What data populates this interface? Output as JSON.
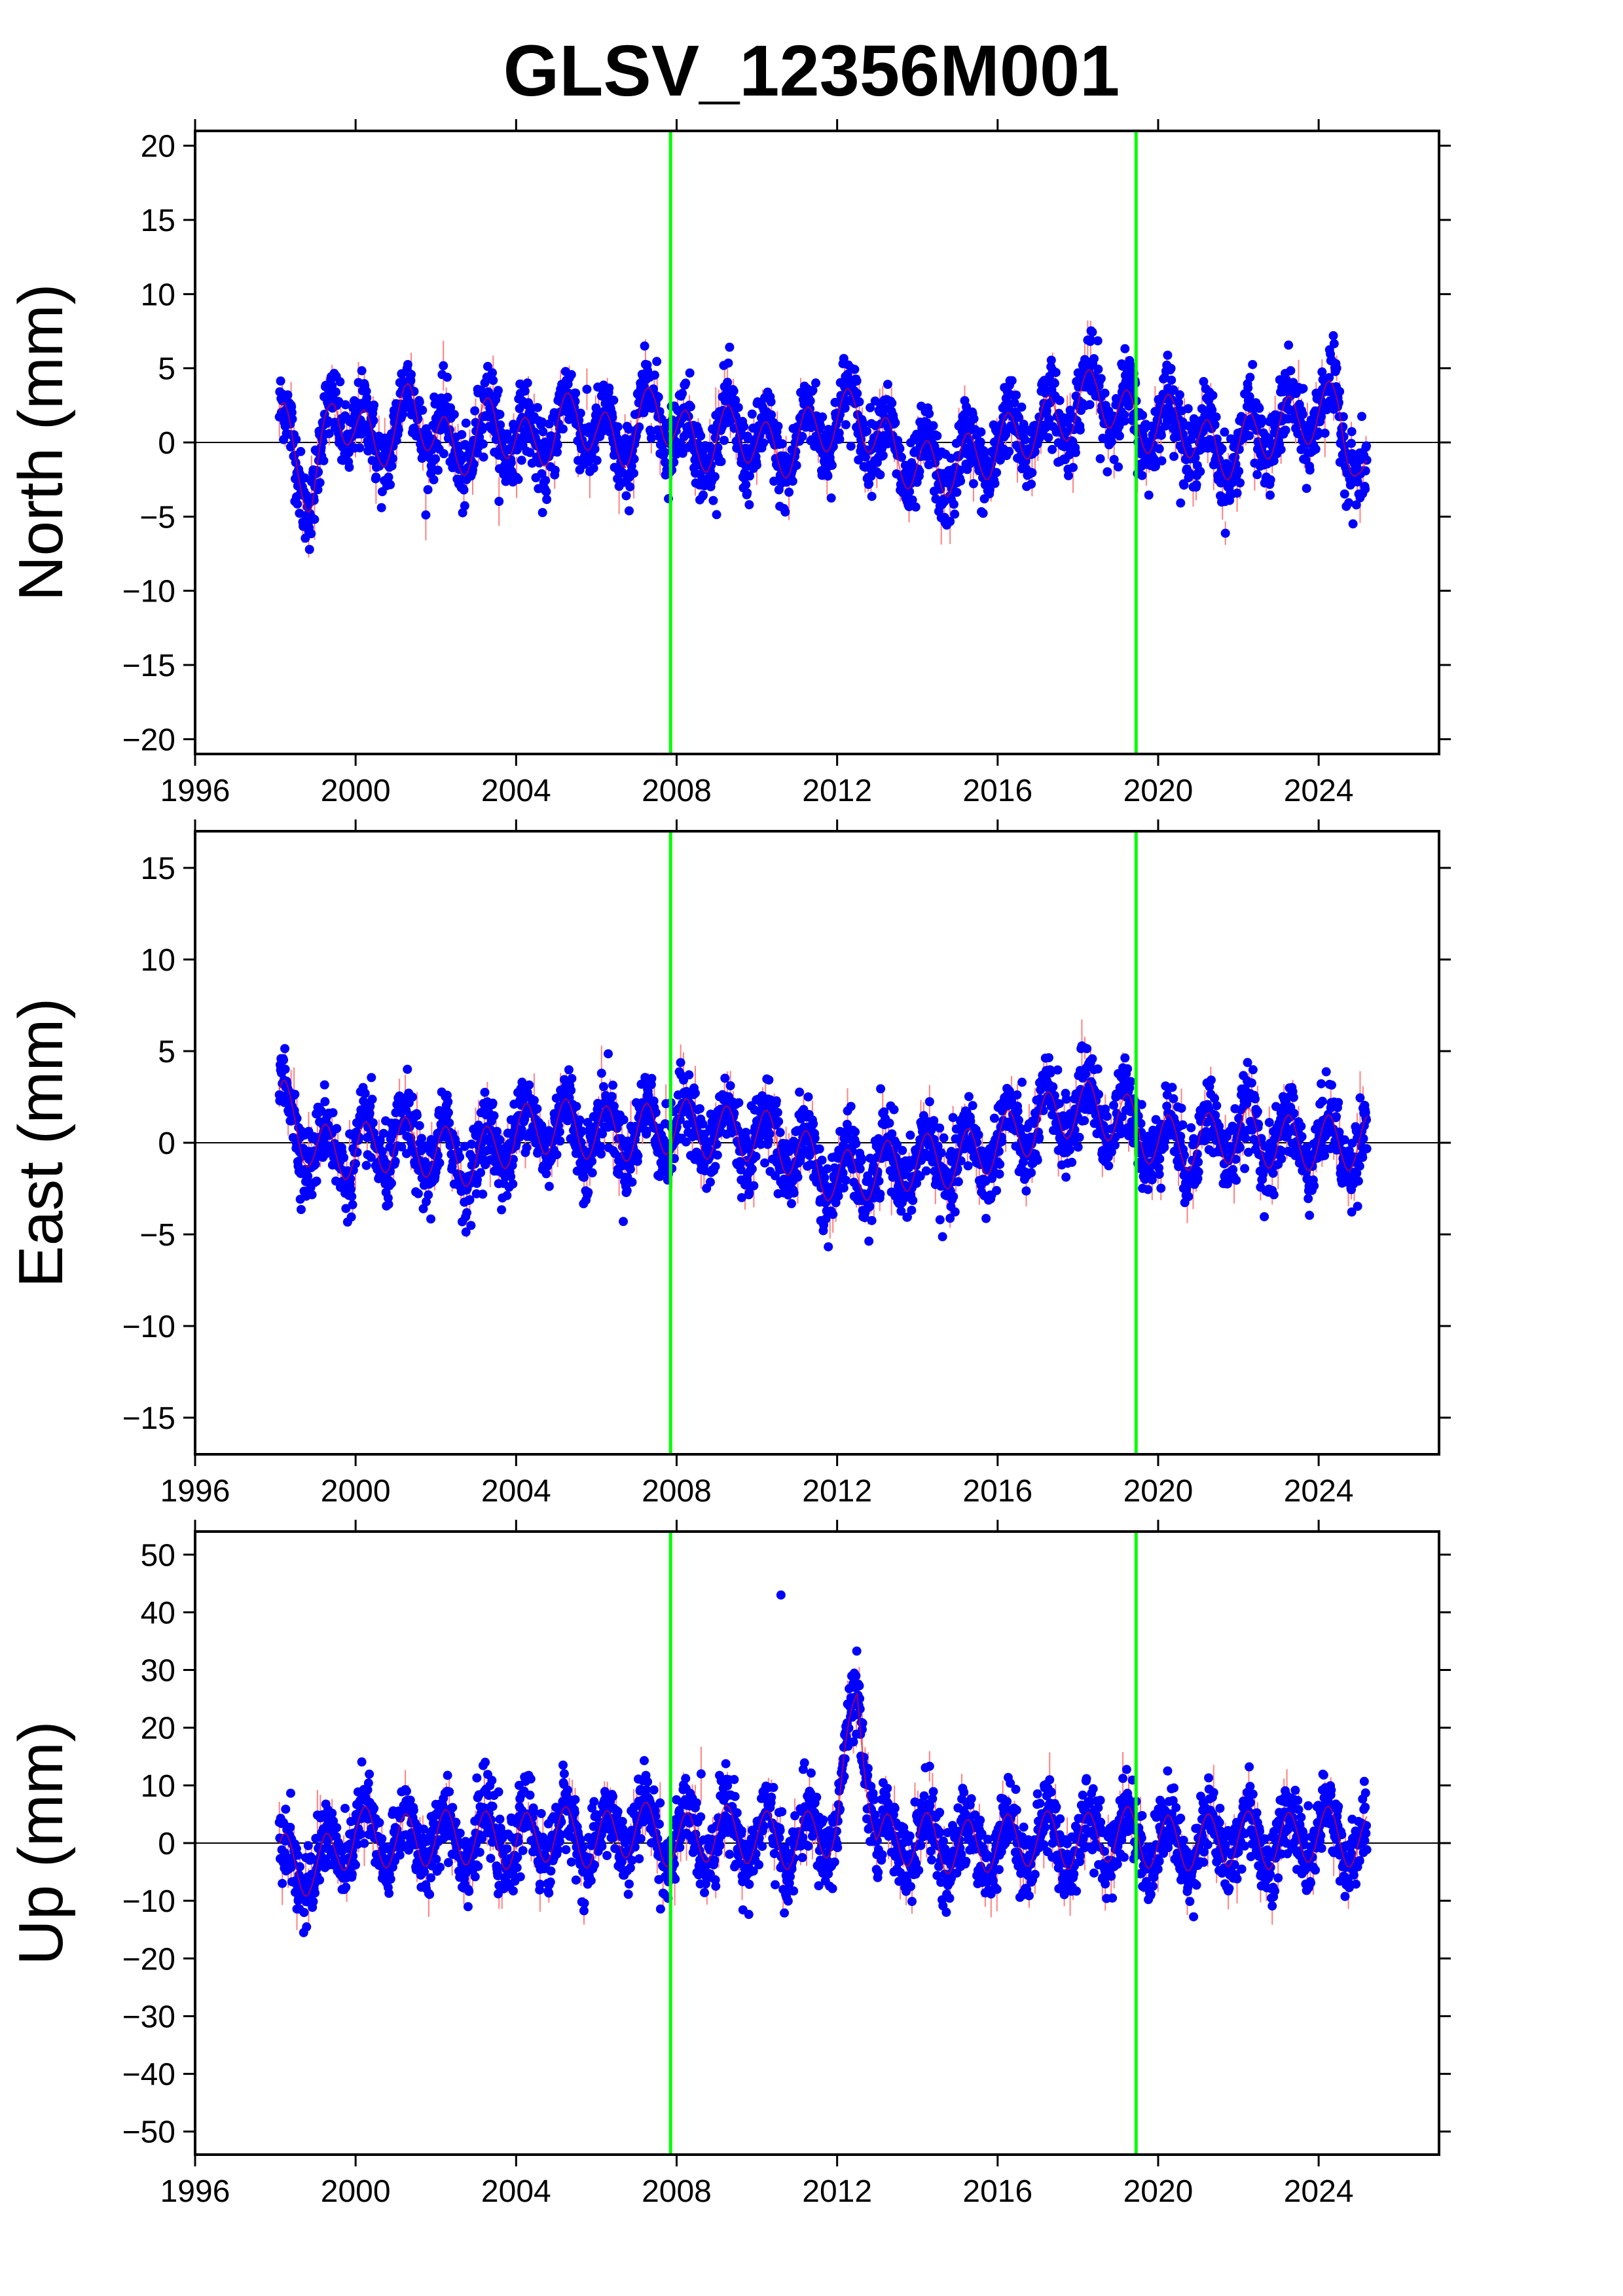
{
  "title": "GLSV_12356M001",
  "colors": {
    "points": "#0000ff",
    "error_bars": "#ff8080",
    "trend": "#ff0000",
    "events": "#00ff00",
    "zero_line": "#000000"
  },
  "chart_data": [
    {
      "type": "scatter",
      "ylabel": "North (mm)",
      "xlim": [
        1996,
        2027
      ],
      "ylim": [
        -21,
        21
      ],
      "xticks": [
        1996,
        2000,
        2004,
        2008,
        2012,
        2016,
        2020,
        2024
      ],
      "yticks": [
        -20,
        -15,
        -10,
        -5,
        0,
        5,
        10,
        15,
        20
      ],
      "event_lines": [
        2007.85,
        2019.45
      ],
      "data_span": [
        1998.1,
        2025.2
      ],
      "series": [
        {
          "x": [
            1998.2,
            1998.9,
            1999.5,
            2000.5,
            2001.4,
            2002.5,
            2003.4,
            2004.4,
            2005.5,
            2006.5,
            2007.5,
            2008.5,
            2009.5,
            2010.5,
            2011.5,
            2012.5,
            2013.5,
            2014.5,
            2015.5,
            2016.5,
            2017.5,
            2018.5,
            2019.5,
            2020.5,
            2021.5,
            2022.5,
            2023.5,
            2024.5,
            2025.1
          ],
          "y": [
            1.0,
            -3.5,
            2.5,
            -0.5,
            2.5,
            -1.0,
            1.5,
            -0.5,
            2.0,
            -0.5,
            2.5,
            -0.5,
            1.0,
            -1.0,
            1.0,
            2.0,
            -1.0,
            -2.0,
            -1.0,
            0.5,
            1.5,
            3.5,
            1.0,
            1.5,
            -1.0,
            0.5,
            1.5,
            2.5,
            -3.0
          ]
        }
      ]
    },
    {
      "type": "scatter",
      "ylabel": "East (mm)",
      "xlim": [
        1996,
        2027
      ],
      "ylim": [
        -17,
        17
      ],
      "xticks": [
        1996,
        2000,
        2004,
        2008,
        2012,
        2016,
        2020,
        2024
      ],
      "yticks": [
        -15,
        -10,
        -5,
        0,
        5,
        10,
        15
      ],
      "event_lines": [
        2007.85,
        2019.45
      ],
      "data_span": [
        1998.1,
        2025.2
      ],
      "series": [
        {
          "x": [
            1998.2,
            1999.0,
            2000.0,
            2001.0,
            2002.0,
            2003.0,
            2004.0,
            2005.0,
            2006.0,
            2007.0,
            2008.0,
            2009.0,
            2010.0,
            2011.0,
            2012.0,
            2013.0,
            2014.0,
            2015.0,
            2016.0,
            2017.0,
            2018.0,
            2019.0,
            2020.0,
            2021.0,
            2022.0,
            2023.0,
            2024.0,
            2025.1
          ],
          "y": [
            2.0,
            -0.5,
            -0.5,
            0.0,
            -0.5,
            -1.0,
            0.5,
            1.0,
            0.5,
            0.5,
            1.0,
            0.5,
            0.5,
            -0.5,
            -2.0,
            -1.5,
            -1.0,
            -1.0,
            0.0,
            1.0,
            2.0,
            1.5,
            0.0,
            0.0,
            0.5,
            0.0,
            0.0,
            0.0
          ]
        }
      ]
    },
    {
      "type": "scatter",
      "ylabel": "Up (mm)",
      "xlim": [
        1996,
        2027
      ],
      "ylim": [
        -54,
        54
      ],
      "xticks": [
        1996,
        2000,
        2004,
        2008,
        2012,
        2016,
        2020,
        2024
      ],
      "yticks": [
        -50,
        -40,
        -30,
        -20,
        -10,
        0,
        10,
        20,
        30,
        40,
        50
      ],
      "event_lines": [
        2007.85,
        2019.45
      ],
      "data_span": [
        1998.1,
        2025.2
      ],
      "series": [
        {
          "x": [
            1998.2,
            1999.0,
            2000.0,
            2001.0,
            2002.0,
            2003.0,
            2004.0,
            2005.0,
            2006.0,
            2007.0,
            2008.0,
            2009.0,
            2010.0,
            2010.6,
            2011.0,
            2012.0,
            2012.5,
            2013.0,
            2014.0,
            2015.0,
            2016.0,
            2017.0,
            2018.0,
            2019.0,
            2020.0,
            2021.0,
            2022.0,
            2023.0,
            2024.0,
            2025.1
          ],
          "y": [
            -3.0,
            -5.0,
            2.0,
            0.0,
            1.0,
            1.0,
            0.0,
            2.0,
            0.0,
            3.0,
            0.0,
            2.0,
            1.0,
            43.0,
            0.0,
            3.0,
            26.0,
            0.0,
            1.0,
            -1.0,
            0.0,
            1.0,
            0.0,
            2.0,
            0.0,
            0.0,
            1.0,
            0.0,
            2.0,
            0.0
          ]
        }
      ]
    }
  ]
}
